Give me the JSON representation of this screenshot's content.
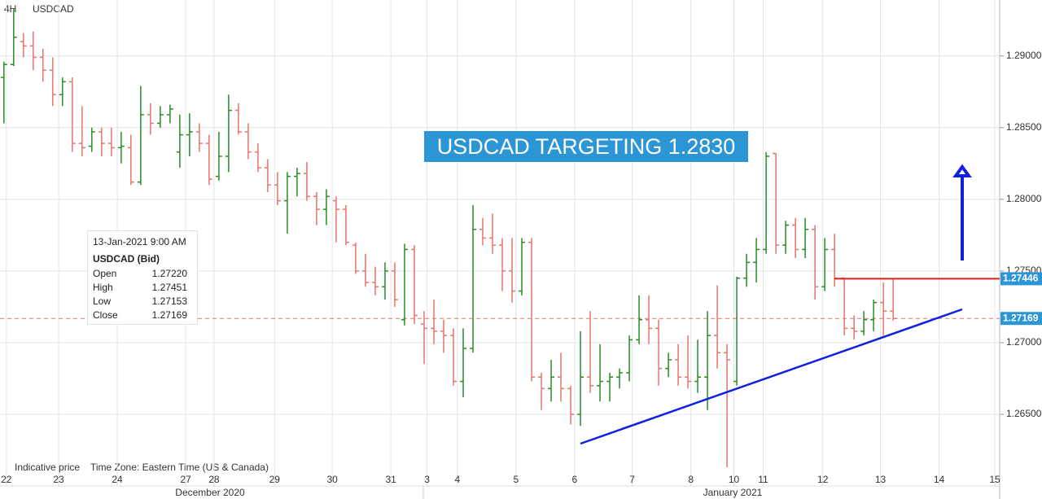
{
  "chart_data": {
    "type": "ohlc",
    "title": "USDCAD",
    "timeframe": "4H",
    "annotation": "USDCAD TARGETING 1.2830",
    "footer_left": "Indicative price",
    "footer_right": "Time Zone: Eastern Time (US & Canada)",
    "months": [
      "December 2020",
      "January 2021"
    ],
    "up_color": "#2a8a2a",
    "down_color": "#e8736a",
    "grid": true,
    "open": [
      1.2885,
      1.2894,
      1.291,
      1.2907,
      1.2899,
      1.289,
      1.2873,
      1.2882,
      1.2839,
      1.2837,
      1.2847,
      1.2839,
      1.2836,
      1.2836,
      1.2812,
      1.2859,
      1.2853,
      1.2859,
      1.2833,
      1.2845,
      1.2847,
      1.2839,
      1.2816,
      1.283,
      1.2862,
      1.2847,
      1.2833,
      1.2822,
      1.281,
      1.2799,
      1.2816,
      1.2818,
      1.2802,
      1.2793,
      1.2799,
      1.2793,
      1.2768,
      1.275,
      1.2742,
      1.2739,
      1.275,
      1.2716,
      1.2765,
      1.2713,
      1.271,
      1.2708,
      1.2705,
      1.2673,
      1.2696,
      1.2779,
      1.2773,
      1.2768,
      1.275,
      1.2736,
      1.277,
      1.2676,
      1.2668,
      1.2676,
      1.2668,
      1.265,
      1.2676,
      1.267,
      1.2673,
      1.2676,
      1.2679,
      1.2702,
      1.2716,
      1.271,
      1.2682,
      1.2688,
      1.2676,
      1.2673,
      1.2676,
      1.2705,
      1.2693,
      1.2673,
      1.2745,
      1.2756,
      1.2765,
      1.2832,
      1.2768,
      1.2782,
      1.2765,
      1.2779,
      1.2739,
      1.2765,
      1.2745,
      1.271,
      1.2708,
      1.2716,
      1.2728,
      1.2722
    ],
    "high": [
      1.2896,
      1.2933,
      1.2916,
      1.2917,
      1.2905,
      1.2899,
      1.2885,
      1.2885,
      1.2865,
      1.285,
      1.285,
      1.285,
      1.2847,
      1.2845,
      1.2879,
      1.2867,
      1.2865,
      1.2866,
      1.2859,
      1.286,
      1.2853,
      1.2845,
      1.2847,
      1.2873,
      1.2867,
      1.2853,
      1.2839,
      1.2828,
      1.2819,
      1.2819,
      1.2822,
      1.2826,
      1.2805,
      1.2807,
      1.2802,
      1.2796,
      1.277,
      1.2762,
      1.2753,
      1.2756,
      1.2756,
      1.2769,
      1.2768,
      1.2722,
      1.273,
      1.2716,
      1.271,
      1.271,
      1.2796,
      1.2787,
      1.279,
      1.2773,
      1.2773,
      1.2773,
      1.2773,
      1.2679,
      1.2688,
      1.2693,
      1.267,
      1.2708,
      1.2722,
      1.2699,
      1.2679,
      1.2682,
      1.2705,
      1.2733,
      1.2733,
      1.2716,
      1.2693,
      1.2699,
      1.2705,
      1.2702,
      1.2722,
      1.274,
      1.2699,
      1.2746,
      1.2762,
      1.2773,
      1.2833,
      1.2832,
      1.2785,
      1.2787,
      1.2787,
      1.2782,
      1.2773,
      1.2776,
      1.2745,
      1.2719,
      1.2722,
      1.273,
      1.2742,
      1.27451
    ],
    "low": [
      1.2853,
      1.2893,
      1.2899,
      1.289,
      1.2882,
      1.2865,
      1.2865,
      1.2833,
      1.283,
      1.2833,
      1.283,
      1.283,
      1.2825,
      1.281,
      1.281,
      1.2845,
      1.285,
      1.2853,
      1.2822,
      1.283,
      1.2833,
      1.281,
      1.2813,
      1.2819,
      1.2845,
      1.2828,
      1.2819,
      1.2805,
      1.2796,
      1.2776,
      1.2802,
      1.2799,
      1.2782,
      1.2782,
      1.277,
      1.2768,
      1.2748,
      1.2739,
      1.2733,
      1.273,
      1.2725,
      1.2712,
      1.2713,
      1.2685,
      1.2699,
      1.2693,
      1.267,
      1.2662,
      1.2693,
      1.2768,
      1.2762,
      1.2736,
      1.2728,
      1.2733,
      1.2673,
      1.2653,
      1.2659,
      1.2659,
      1.2643,
      1.2642,
      1.2665,
      1.2659,
      1.2659,
      1.2668,
      1.2673,
      1.2699,
      1.2699,
      1.267,
      1.2676,
      1.267,
      1.2668,
      1.2665,
      1.2653,
      1.2682,
      1.2613,
      1.267,
      1.2739,
      1.2742,
      1.2762,
      1.2762,
      1.2762,
      1.2759,
      1.2759,
      1.273,
      1.2736,
      1.2739,
      1.2705,
      1.2702,
      1.2705,
      1.2708,
      1.2705,
      1.27153
    ],
    "close": [
      1.2894,
      1.2913,
      1.2907,
      1.2899,
      1.289,
      1.2873,
      1.2882,
      1.2839,
      1.2836,
      1.2847,
      1.2839,
      1.2836,
      1.2837,
      1.2812,
      1.2859,
      1.2853,
      1.2859,
      1.2863,
      1.2845,
      1.2847,
      1.2839,
      1.2814,
      1.283,
      1.2862,
      1.2847,
      1.2833,
      1.2822,
      1.281,
      1.2799,
      1.2816,
      1.2818,
      1.2802,
      1.2793,
      1.2802,
      1.2793,
      1.277,
      1.275,
      1.2742,
      1.2739,
      1.275,
      1.273,
      1.2765,
      1.2719,
      1.271,
      1.2708,
      1.2705,
      1.2673,
      1.2696,
      1.2779,
      1.2773,
      1.2768,
      1.275,
      1.2736,
      1.277,
      1.2676,
      1.2668,
      1.2676,
      1.2668,
      1.265,
      1.2676,
      1.267,
      1.2673,
      1.2676,
      1.2679,
      1.2702,
      1.2716,
      1.271,
      1.2682,
      1.2688,
      1.2676,
      1.2673,
      1.2676,
      1.2705,
      1.2693,
      1.2688,
      1.2745,
      1.2756,
      1.2765,
      1.283,
      1.2768,
      1.2782,
      1.2765,
      1.2779,
      1.2739,
      1.2765,
      1.2745,
      1.271,
      1.2708,
      1.2716,
      1.2728,
      1.2722,
      1.27169
    ],
    "xlim": [
      -0.4,
      101.9
    ],
    "xticks": [
      {
        "value": 0.25,
        "label": "22"
      },
      {
        "value": 5.6,
        "label": "23"
      },
      {
        "value": 11.6,
        "label": "24"
      },
      {
        "value": 18.6,
        "label": "27"
      },
      {
        "value": 21.5,
        "label": "28"
      },
      {
        "value": 27.7,
        "label": "29"
      },
      {
        "value": 33.6,
        "label": "30"
      },
      {
        "value": 39.6,
        "label": "31"
      },
      {
        "value": 43.3,
        "label": "3"
      },
      {
        "value": 46.4,
        "label": "4"
      },
      {
        "value": 52.4,
        "label": "5"
      },
      {
        "value": 58.4,
        "label": "6"
      },
      {
        "value": 64.3,
        "label": "7"
      },
      {
        "value": 70.3,
        "label": "8"
      },
      {
        "value": 74.7,
        "label": "10"
      },
      {
        "value": 77.7,
        "label": "11"
      },
      {
        "value": 83.8,
        "label": "12"
      },
      {
        "value": 89.7,
        "label": "13"
      },
      {
        "value": 95.7,
        "label": "14"
      },
      {
        "value": 101.4,
        "label": "15"
      }
    ],
    "ylim": [
      1.2608,
      1.2939
    ],
    "yticks": [
      {
        "value": 1.265,
        "label": "1.26500"
      },
      {
        "value": 1.27,
        "label": "1.27000"
      },
      {
        "value": 1.275,
        "label": "1.27500"
      },
      {
        "value": 1.28,
        "label": "1.28000"
      },
      {
        "value": 1.285,
        "label": "1.28500"
      },
      {
        "value": 1.29,
        "label": "1.29000"
      }
    ],
    "price_tags": [
      {
        "value": 1.27446,
        "label": "1.27446"
      },
      {
        "value": 1.27169,
        "label": "1.27169"
      }
    ],
    "tooltip": {
      "date": "13-Jan-2021 9:00 AM",
      "symbol": "USDCAD (Bid)",
      "rows": [
        {
          "label": "Open",
          "value": "1.27220"
        },
        {
          "label": "High",
          "value": "1.27451"
        },
        {
          "label": "Low",
          "value": "1.27153"
        },
        {
          "label": "Close",
          "value": "1.27169"
        }
      ]
    }
  }
}
